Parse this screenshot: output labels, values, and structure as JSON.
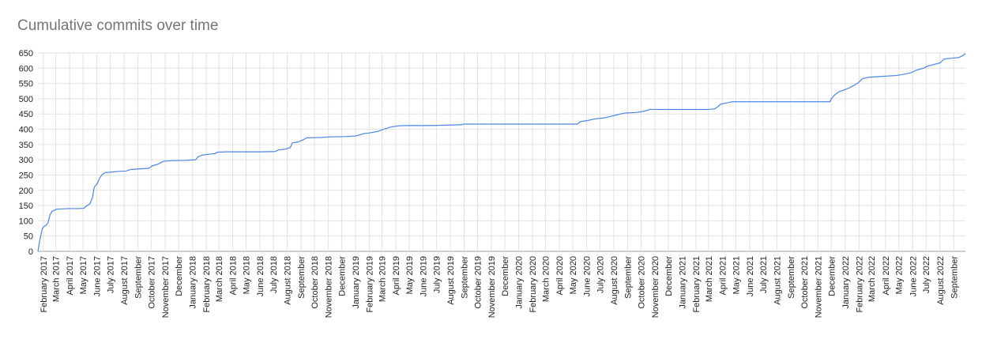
{
  "chart_data": {
    "type": "line",
    "title": "Cumulative commits over time",
    "xlabel": "",
    "ylabel": "",
    "ylim": [
      0,
      650
    ],
    "yticks": [
      0,
      50,
      100,
      150,
      200,
      250,
      300,
      350,
      400,
      450,
      500,
      550,
      600,
      650
    ],
    "xlim": [
      "2017-01-20",
      "2022-09-27"
    ],
    "grid": {
      "horizontal": true,
      "vertical": true
    },
    "legend": "none",
    "line_color": "#4a86e8",
    "grid_color": "#e2e2e2",
    "x_tick_labels": [
      "February 2017",
      "March 2017",
      "April 2017",
      "May 2017",
      "June 2017",
      "July 2017",
      "August 2017",
      "September",
      "October 2017",
      "November 2017",
      "December",
      "January 2018",
      "February 2018",
      "March 2018",
      "April 2018",
      "May 2018",
      "June 2018",
      "July 2018",
      "August 2018",
      "September",
      "October 2018",
      "November 2018",
      "December",
      "January 2019",
      "February 2019",
      "March 2019",
      "April 2019",
      "May 2019",
      "June 2019",
      "July 2019",
      "August 2019",
      "September",
      "October 2019",
      "November 2019",
      "December",
      "January 2020",
      "February 2020",
      "March 2020",
      "April 2020",
      "May 2020",
      "June 2020",
      "July 2020",
      "August 2020",
      "September",
      "October 2020",
      "November 2020",
      "December",
      "January 2021",
      "February 2021",
      "March 2021",
      "April 2021",
      "May 2021",
      "June 2021",
      "July 2021",
      "August 2021",
      "September",
      "October 2021",
      "November 2021",
      "December",
      "January 2022",
      "February 2022",
      "March 2022",
      "April 2022",
      "May 2022",
      "June 2022",
      "July 2022",
      "August 2022",
      "September"
    ],
    "series": [
      {
        "points": [
          [
            "2017-01-20",
            0
          ],
          [
            "2017-01-24",
            35
          ],
          [
            "2017-01-27",
            55
          ],
          [
            "2017-01-30",
            75
          ],
          [
            "2017-02-03",
            82
          ],
          [
            "2017-02-08",
            86
          ],
          [
            "2017-02-12",
            95
          ],
          [
            "2017-02-16",
            120
          ],
          [
            "2017-02-21",
            132
          ],
          [
            "2017-02-26",
            134
          ],
          [
            "2017-03-02",
            138
          ],
          [
            "2017-03-15",
            139
          ],
          [
            "2017-04-01",
            140
          ],
          [
            "2017-04-20",
            140
          ],
          [
            "2017-05-03",
            141
          ],
          [
            "2017-05-08",
            148
          ],
          [
            "2017-05-16",
            155
          ],
          [
            "2017-05-22",
            175
          ],
          [
            "2017-05-26",
            210
          ],
          [
            "2017-06-02",
            222
          ],
          [
            "2017-06-07",
            240
          ],
          [
            "2017-06-13",
            252
          ],
          [
            "2017-06-20",
            258
          ],
          [
            "2017-07-05",
            260
          ],
          [
            "2017-07-20",
            262
          ],
          [
            "2017-08-05",
            263
          ],
          [
            "2017-08-15",
            268
          ],
          [
            "2017-09-01",
            270
          ],
          [
            "2017-09-25",
            272
          ],
          [
            "2017-10-03",
            280
          ],
          [
            "2017-10-15",
            285
          ],
          [
            "2017-10-28",
            295
          ],
          [
            "2017-11-15",
            297
          ],
          [
            "2017-12-15",
            298
          ],
          [
            "2018-01-08",
            300
          ],
          [
            "2018-01-14",
            310
          ],
          [
            "2018-01-22",
            315
          ],
          [
            "2018-02-05",
            318
          ],
          [
            "2018-02-20",
            320
          ],
          [
            "2018-02-26",
            325
          ],
          [
            "2018-03-20",
            326
          ],
          [
            "2018-05-01",
            326
          ],
          [
            "2018-06-01",
            326
          ],
          [
            "2018-07-05",
            327
          ],
          [
            "2018-07-12",
            332
          ],
          [
            "2018-07-28",
            335
          ],
          [
            "2018-08-08",
            340
          ],
          [
            "2018-08-12",
            355
          ],
          [
            "2018-08-24",
            358
          ],
          [
            "2018-09-05",
            365
          ],
          [
            "2018-09-14",
            372
          ],
          [
            "2018-10-15",
            373
          ],
          [
            "2018-11-05",
            375
          ],
          [
            "2018-12-10",
            376
          ],
          [
            "2019-01-01",
            378
          ],
          [
            "2019-01-12",
            382
          ],
          [
            "2019-01-20",
            386
          ],
          [
            "2019-02-01",
            388
          ],
          [
            "2019-02-20",
            393
          ],
          [
            "2019-03-05",
            400
          ],
          [
            "2019-03-20",
            407
          ],
          [
            "2019-04-05",
            411
          ],
          [
            "2019-04-20",
            412
          ],
          [
            "2019-06-15",
            412
          ],
          [
            "2019-08-10",
            414
          ],
          [
            "2019-08-25",
            415
          ],
          [
            "2019-09-01",
            417
          ],
          [
            "2019-10-15",
            417
          ],
          [
            "2020-01-01",
            417
          ],
          [
            "2020-03-15",
            417
          ],
          [
            "2020-05-12",
            417
          ],
          [
            "2020-05-18",
            425
          ],
          [
            "2020-06-01",
            428
          ],
          [
            "2020-06-20",
            434
          ],
          [
            "2020-07-10",
            437
          ],
          [
            "2020-07-25",
            442
          ],
          [
            "2020-08-10",
            448
          ],
          [
            "2020-08-25",
            453
          ],
          [
            "2020-09-20",
            455
          ],
          [
            "2020-10-05",
            458
          ],
          [
            "2020-10-15",
            462
          ],
          [
            "2020-10-20",
            465
          ],
          [
            "2020-12-01",
            465
          ],
          [
            "2021-03-01",
            465
          ],
          [
            "2021-03-15",
            467
          ],
          [
            "2021-03-22",
            474
          ],
          [
            "2021-03-28",
            482
          ],
          [
            "2021-04-10",
            486
          ],
          [
            "2021-04-22",
            490
          ],
          [
            "2021-06-01",
            490
          ],
          [
            "2021-09-01",
            490
          ],
          [
            "2021-11-28",
            490
          ],
          [
            "2021-12-01",
            500
          ],
          [
            "2021-12-08",
            512
          ],
          [
            "2021-12-18",
            523
          ],
          [
            "2022-01-01",
            530
          ],
          [
            "2022-01-12",
            537
          ],
          [
            "2022-01-22",
            545
          ],
          [
            "2022-01-30",
            552
          ],
          [
            "2022-02-08",
            565
          ],
          [
            "2022-02-20",
            570
          ],
          [
            "2022-03-10",
            572
          ],
          [
            "2022-04-01",
            574
          ],
          [
            "2022-04-25",
            576
          ],
          [
            "2022-05-12",
            580
          ],
          [
            "2022-05-28",
            585
          ],
          [
            "2022-06-08",
            593
          ],
          [
            "2022-06-25",
            600
          ],
          [
            "2022-07-05",
            607
          ],
          [
            "2022-07-18",
            612
          ],
          [
            "2022-08-02",
            618
          ],
          [
            "2022-08-10",
            630
          ],
          [
            "2022-08-22",
            632
          ],
          [
            "2022-09-12",
            635
          ],
          [
            "2022-09-20",
            640
          ],
          [
            "2022-09-27",
            648
          ]
        ]
      }
    ]
  }
}
